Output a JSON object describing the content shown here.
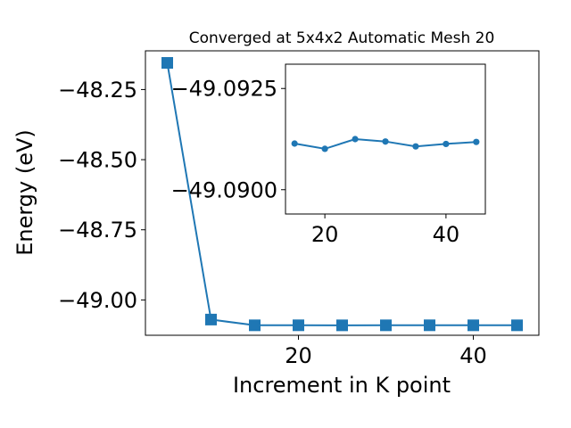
{
  "chart_data": [
    {
      "type": "line",
      "title": "Converged at 5x4x2 Automatic Mesh 20",
      "xlabel": "Increment in K point",
      "ylabel": "Energy (eV)",
      "xlim": [
        2.5,
        47.5
      ],
      "ylim": [
        -49.126,
        -48.112
      ],
      "xticks": [
        20,
        40
      ],
      "xtick_labels": [
        "20",
        "40"
      ],
      "yticks": [
        -48.25,
        -48.5,
        -48.75,
        -49.0
      ],
      "ytick_labels": [
        "−48.25",
        "−48.50",
        "−48.75",
        "−49.00"
      ],
      "marker": "square",
      "color": "#1f77b4",
      "series": [
        {
          "x": [
            5,
            10,
            15,
            20,
            25,
            30,
            35,
            40,
            45
          ],
          "y": [
            -48.155,
            -49.07,
            -49.0905,
            -49.0904,
            -49.0906,
            -49.0905,
            -49.0904,
            -49.0905,
            -49.0905
          ]
        }
      ]
    },
    {
      "type": "line",
      "role": "inset",
      "xlim": [
        13.5,
        46.5
      ],
      "ylim": [
        -49.0894,
        -49.0931
      ],
      "xticks": [
        20,
        40
      ],
      "xtick_labels": [
        "20",
        "40"
      ],
      "yticks": [
        -49.0925,
        -49.09
      ],
      "ytick_labels": [
        "−49.0925",
        "−49.0900"
      ],
      "marker": "circle",
      "color": "#1f77b4",
      "series": [
        {
          "x": [
            15,
            20,
            25,
            30,
            35,
            40,
            45
          ],
          "y": [
            -49.09114,
            -49.09101,
            -49.09125,
            -49.09119,
            -49.09107,
            -49.09113,
            -49.09118
          ]
        }
      ]
    }
  ]
}
